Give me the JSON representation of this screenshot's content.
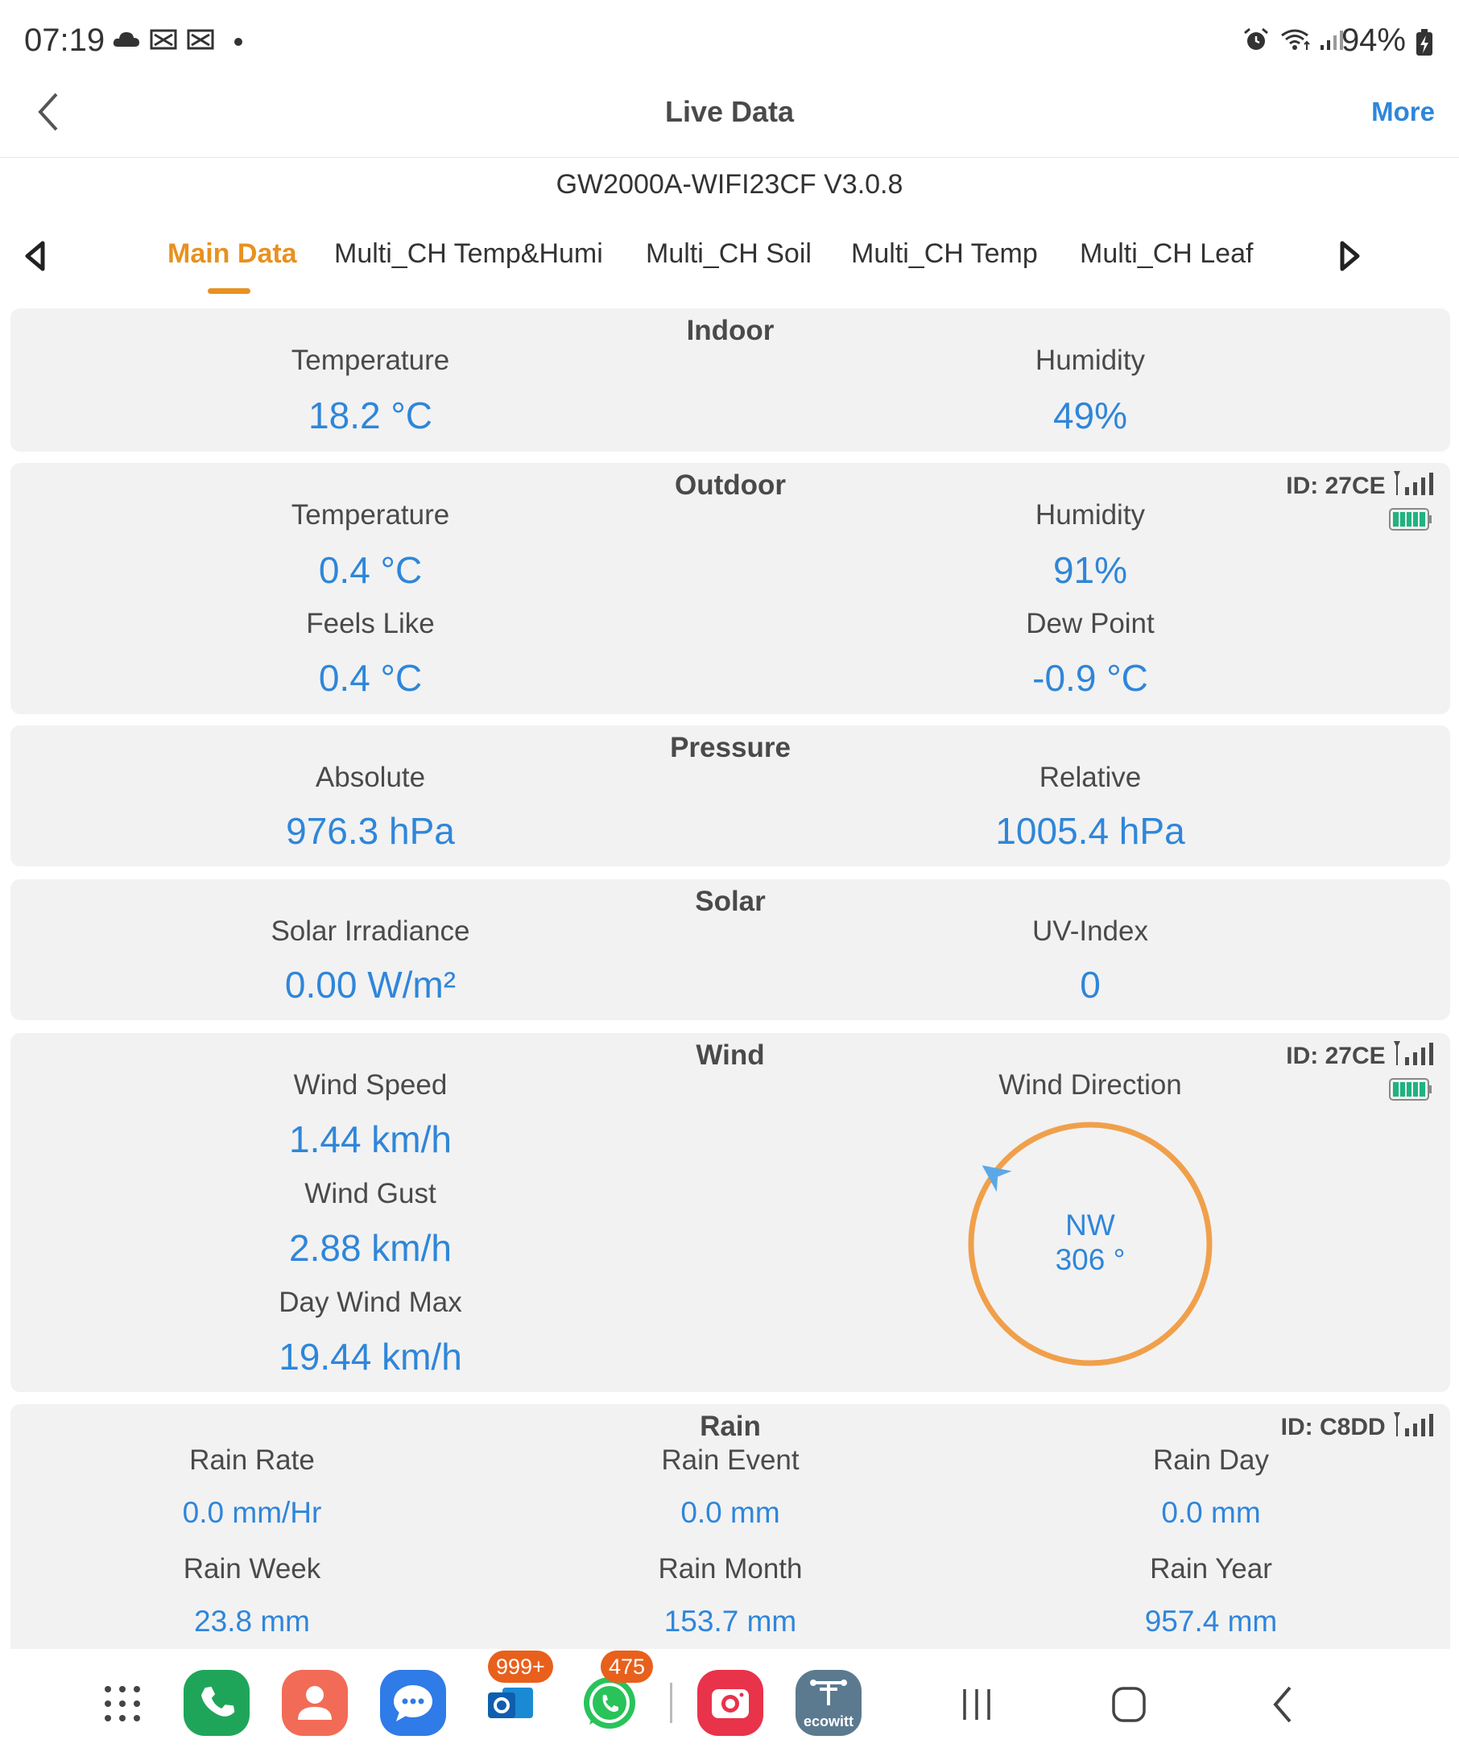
{
  "status": {
    "time": "07:19",
    "battery": "94%"
  },
  "header": {
    "title": "Live Data",
    "more": "More"
  },
  "device": "GW2000A-WIFI23CF V3.0.8",
  "tabs": [
    "Main Data",
    "Multi_CH Temp&Humi",
    "Multi_CH Soil",
    "Multi_CH Temp",
    "Multi_CH Leaf"
  ],
  "indoor": {
    "title": "Indoor",
    "temp_label": "Temperature",
    "temp": "18.2 °C",
    "hum_label": "Humidity",
    "hum": "49%"
  },
  "outdoor": {
    "title": "Outdoor",
    "id": "ID: 27CE",
    "temp_label": "Temperature",
    "temp": "0.4 °C",
    "hum_label": "Humidity",
    "hum": "91%",
    "feels_label": "Feels Like",
    "feels": "0.4 °C",
    "dew_label": "Dew Point",
    "dew": "-0.9 °C"
  },
  "pressure": {
    "title": "Pressure",
    "abs_label": "Absolute",
    "abs": "976.3 hPa",
    "rel_label": "Relative",
    "rel": "1005.4 hPa"
  },
  "solar": {
    "title": "Solar",
    "irr_label": "Solar Irradiance",
    "irr": "0.00 W/m²",
    "uv_label": "UV-Index",
    "uv": "0"
  },
  "wind": {
    "title": "Wind",
    "id": "ID: 27CE",
    "speed_label": "Wind Speed",
    "speed": "1.44 km/h",
    "gust_label": "Wind Gust",
    "gust": "2.88 km/h",
    "max_label": "Day Wind Max",
    "max": "19.44 km/h",
    "dir_label": "Wind Direction",
    "dir": "NW",
    "deg": "306 °",
    "deg_value": 306
  },
  "rain": {
    "title": "Rain",
    "id": "ID: C8DD",
    "rate_label": "Rain Rate",
    "rate": "0.0 mm/Hr",
    "event_label": "Rain Event",
    "event": "0.0 mm",
    "day_label": "Rain Day",
    "day": "0.0 mm",
    "week_label": "Rain Week",
    "week": "23.8 mm",
    "month_label": "Rain Month",
    "month": "153.7 mm",
    "year_label": "Rain Year",
    "year": "957.4 mm"
  },
  "dock": {
    "outlook_badge": "999+",
    "whatsapp_badge": "475",
    "ecowitt_label": "ecowitt"
  },
  "colors": {
    "accent": "#e8911f",
    "value": "#2f86d9",
    "card": "#f2f2f2"
  }
}
